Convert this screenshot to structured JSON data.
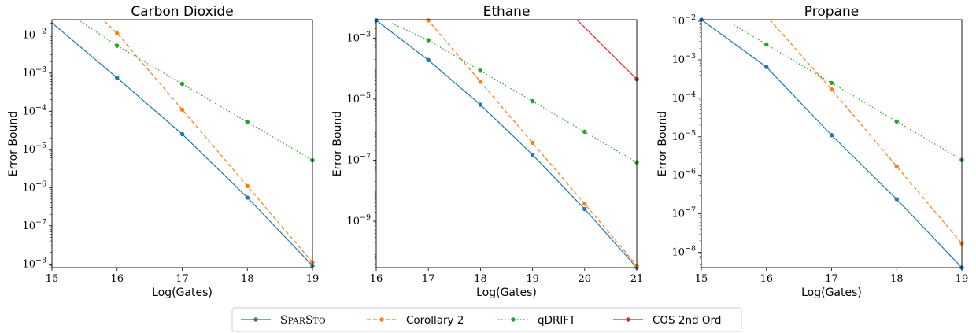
{
  "chart_data": [
    {
      "type": "line",
      "title": "Carbon Dioxide",
      "xlabel": "Log(Gates)",
      "ylabel": "Error Bound",
      "yscale": "log",
      "xlim": [
        15,
        19
      ],
      "ylim": [
        8e-09,
        0.025
      ],
      "xticks": [
        15,
        16,
        17,
        18,
        19
      ],
      "yticks": [
        {
          "v": 0.01,
          "m": "10",
          "e": "−2"
        },
        {
          "v": 0.001,
          "m": "10",
          "e": "−3"
        },
        {
          "v": 0.0001,
          "m": "10",
          "e": "−4"
        },
        {
          "v": 1e-05,
          "m": "10",
          "e": "−5"
        },
        {
          "v": 1e-06,
          "m": "10",
          "e": "−6"
        },
        {
          "v": 1e-07,
          "m": "10",
          "e": "−7"
        },
        {
          "v": 1e-08,
          "m": "10",
          "e": "−8"
        }
      ],
      "series": [
        {
          "name": "SparSto",
          "x": [
            14.8,
            16,
            17,
            18,
            19
          ],
          "y": [
            0.04,
            0.00075,
            2.5e-05,
            5.5e-07,
            9e-09
          ],
          "color": "#1f77b4",
          "dash": ""
        },
        {
          "name": "Corollary 2",
          "x": [
            15.6,
            16,
            17,
            18,
            19
          ],
          "y": [
            0.05,
            0.011,
            0.00011,
            1.1e-06,
            1.1e-08
          ],
          "color": "#ff7f0e",
          "dash": "5,3"
        },
        {
          "name": "qDRIFT",
          "x": [
            15.4,
            16,
            17,
            18,
            19
          ],
          "y": [
            0.025,
            0.0052,
            0.00052,
            5.2e-05,
            5.2e-06
          ],
          "color": "#2ca02c",
          "dash": "1.5,2.5"
        }
      ]
    },
    {
      "type": "line",
      "title": "Ethane",
      "xlabel": "Log(Gates)",
      "ylabel": "Error Bound",
      "yscale": "log",
      "xlim": [
        16,
        21
      ],
      "ylim": [
        3e-11,
        0.004
      ],
      "xticks": [
        16,
        17,
        18,
        19,
        20,
        21
      ],
      "yticks": [
        {
          "v": 0.001,
          "m": "10",
          "e": "−3"
        },
        {
          "v": 1e-05,
          "m": "10",
          "e": "−5"
        },
        {
          "v": 1e-07,
          "m": "10",
          "e": "−7"
        },
        {
          "v": 1e-09,
          "m": "10",
          "e": "−9"
        }
      ],
      "series": [
        {
          "name": "SparSto",
          "x": [
            16,
            17,
            18,
            19,
            20,
            21
          ],
          "y": [
            0.0038,
            0.00019,
            6.5e-06,
            1.5e-07,
            2.5e-09,
            3e-11
          ],
          "color": "#1f77b4",
          "dash": ""
        },
        {
          "name": "Corollary 2",
          "x": [
            16.8,
            17,
            18,
            19,
            20,
            21
          ],
          "y": [
            0.008,
            0.0038,
            3.7e-05,
            3.7e-07,
            3.7e-09,
            3.5e-11
          ],
          "color": "#ff7f0e",
          "dash": "5,3"
        },
        {
          "name": "qDRIFT",
          "x": [
            16.3,
            17,
            18,
            19,
            20,
            21
          ],
          "y": [
            0.003,
            0.00085,
            8.5e-05,
            8.5e-06,
            8.5e-07,
            8.5e-08
          ],
          "color": "#2ca02c",
          "dash": "1.5,2.5"
        },
        {
          "name": "COS 2nd Ord",
          "x": [
            19.85,
            21
          ],
          "y": [
            0.004,
            4.5e-05
          ],
          "color": "#d62728",
          "dash": "",
          "markers": [
            21
          ]
        }
      ]
    },
    {
      "type": "line",
      "title": "Propane",
      "xlabel": "Log(Gates)",
      "ylabel": "Error Bound",
      "yscale": "log",
      "xlim": [
        15,
        19
      ],
      "ylim": [
        4e-09,
        0.011
      ],
      "xticks": [
        15,
        16,
        17,
        18,
        19
      ],
      "yticks": [
        {
          "v": 0.01,
          "m": "10",
          "e": "−2"
        },
        {
          "v": 0.001,
          "m": "10",
          "e": "−3"
        },
        {
          "v": 0.0001,
          "m": "10",
          "e": "−4"
        },
        {
          "v": 1e-05,
          "m": "10",
          "e": "−5"
        },
        {
          "v": 1e-06,
          "m": "10",
          "e": "−6"
        },
        {
          "v": 1e-07,
          "m": "10",
          "e": "−7"
        },
        {
          "v": 1e-08,
          "m": "10",
          "e": "−8"
        }
      ],
      "series": [
        {
          "name": "SparSto",
          "x": [
            15,
            16,
            17,
            18,
            19
          ],
          "y": [
            0.011,
            0.00065,
            1.1e-05,
            2.4e-07,
            4e-09
          ],
          "color": "#1f77b4",
          "dash": ""
        },
        {
          "name": "Corollary 2",
          "x": [
            16.05,
            17,
            18,
            19
          ],
          "y": [
            0.011,
            0.00017,
            1.7e-06,
            1.7e-08
          ],
          "color": "#ff7f0e",
          "dash": "5,3"
        },
        {
          "name": "qDRIFT",
          "x": [
            15.5,
            16,
            17,
            18,
            19
          ],
          "y": [
            0.008,
            0.0025,
            0.00025,
            2.5e-05,
            2.5e-06
          ],
          "color": "#2ca02c",
          "dash": "1.5,2.5"
        }
      ]
    }
  ],
  "legend": {
    "placement": "bottom-center",
    "items": [
      {
        "label": "SparSto",
        "color": "#1f77b4",
        "dash": "",
        "smallcaps": true
      },
      {
        "label": "Corollary 2",
        "color": "#ff7f0e",
        "dash": "5,3"
      },
      {
        "label": "qDRIFT",
        "color": "#2ca02c",
        "dash": "1.5,2.5"
      },
      {
        "label": "COS 2nd Ord",
        "color": "#d62728",
        "dash": ""
      }
    ]
  }
}
